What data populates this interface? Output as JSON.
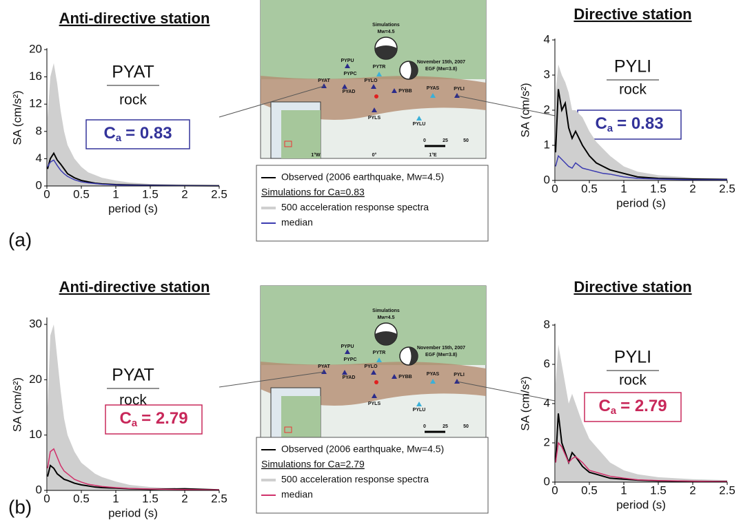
{
  "chart_data": [
    {
      "type": "line",
      "title": "Anti-directive station",
      "station": "PYAT",
      "site": "rock",
      "coef_symbol": "C",
      "coef_subscript": "a",
      "coef_text": "= 0.83",
      "coef_color": "#33339a",
      "xlabel": "period (s)",
      "ylabel": "SA (cm/s²)",
      "xlim": [
        0,
        2.5
      ],
      "xticks": [
        0,
        0.5,
        1,
        1.5,
        2,
        2.5
      ],
      "ylim": [
        0,
        20
      ],
      "yticks": [
        0,
        4,
        8,
        12,
        16,
        20
      ],
      "x": [
        0.01,
        0.05,
        0.1,
        0.15,
        0.2,
        0.25,
        0.3,
        0.4,
        0.5,
        0.6,
        0.7,
        0.8,
        1,
        1.2,
        1.5,
        2,
        2.5
      ],
      "legend_title": "Simulations for Ca=0.83",
      "series": [
        {
          "name": "500 acceleration response spectra",
          "color": "#cfcfcf",
          "style": "area",
          "values": [
            10,
            16,
            18,
            15,
            11,
            8,
            6,
            4,
            2.8,
            2,
            1.6,
            1.2,
            0.8,
            0.5,
            0.3,
            0.2,
            0.15
          ]
        },
        {
          "name": "Observed (2006 earthquake, Mw=4.5)",
          "color": "#000000",
          "style": "line",
          "values": [
            2.5,
            4,
            4.8,
            3.8,
            3.2,
            2.5,
            1.8,
            1.2,
            0.8,
            0.6,
            0.4,
            0.3,
            0.2,
            0.15,
            0.1,
            0.05,
            0.03
          ]
        },
        {
          "name": "median",
          "color": "#3b3bb0",
          "style": "line",
          "values": [
            2.8,
            3.5,
            3.8,
            3,
            2.3,
            1.8,
            1.4,
            0.9,
            0.6,
            0.45,
            0.35,
            0.25,
            0.15,
            0.1,
            0.07,
            0.04,
            0.03
          ]
        }
      ]
    },
    {
      "type": "line",
      "title": "Directive station",
      "station": "PYLI",
      "site": "rock",
      "coef_symbol": "C",
      "coef_subscript": "a",
      "coef_text": "= 0.83",
      "coef_color": "#33339a",
      "xlabel": "period (s)",
      "ylabel": "SA (cm/s²)",
      "xlim": [
        0,
        2.5
      ],
      "xticks": [
        0,
        0.5,
        1,
        1.5,
        2,
        2.5
      ],
      "ylim": [
        0,
        4
      ],
      "yticks": [
        0,
        1,
        2,
        3,
        4
      ],
      "x": [
        0.01,
        0.05,
        0.1,
        0.15,
        0.2,
        0.25,
        0.3,
        0.4,
        0.5,
        0.6,
        0.7,
        0.8,
        1,
        1.2,
        1.5,
        2,
        2.5
      ],
      "series": [
        {
          "name": "500 acceleration response spectra",
          "color": "#cfcfcf",
          "style": "area",
          "values": [
            2.5,
            3.3,
            3,
            2.8,
            2.5,
            2,
            2,
            1.8,
            1.4,
            1.1,
            0.9,
            0.7,
            0.4,
            0.25,
            0.15,
            0.08,
            0.05
          ]
        },
        {
          "name": "Observed (2006 earthquake, Mw=4.5)",
          "color": "#000000",
          "style": "line",
          "values": [
            0.8,
            2.6,
            2,
            2.2,
            1.5,
            1.2,
            1.4,
            1,
            0.7,
            0.5,
            0.4,
            0.3,
            0.2,
            0.1,
            0.06,
            0.04,
            0.03
          ]
        },
        {
          "name": "median",
          "color": "#3b3bb0",
          "style": "line",
          "values": [
            0.4,
            0.7,
            0.6,
            0.5,
            0.4,
            0.35,
            0.5,
            0.35,
            0.3,
            0.25,
            0.2,
            0.18,
            0.1,
            0.06,
            0.04,
            0.02,
            0.02
          ]
        }
      ]
    },
    {
      "type": "line",
      "title": "Anti-directive station",
      "station": "PYAT",
      "site": "rock",
      "coef_symbol": "C",
      "coef_subscript": "a",
      "coef_text": "= 2.79",
      "coef_color": "#c8285a",
      "xlabel": "period (s)",
      "ylabel": "SA (cm/s²)",
      "xlim": [
        0,
        2.5
      ],
      "xticks": [
        0,
        0.5,
        1,
        1.5,
        2,
        2.5
      ],
      "ylim": [
        0,
        31
      ],
      "yticks": [
        0,
        10,
        20,
        30
      ],
      "x": [
        0.01,
        0.05,
        0.1,
        0.15,
        0.2,
        0.25,
        0.3,
        0.4,
        0.5,
        0.6,
        0.7,
        0.8,
        1,
        1.2,
        1.5,
        2,
        2.5
      ],
      "legend_title": "Simulations for Ca=2.79",
      "series": [
        {
          "name": "500 acceleration response spectra",
          "color": "#cfcfcf",
          "style": "area",
          "values": [
            15,
            28,
            30,
            24,
            18,
            13,
            10,
            7,
            5,
            4,
            3,
            2.4,
            1.6,
            1,
            0.6,
            0.3,
            0.2
          ]
        },
        {
          "name": "Observed (2006 earthquake, Mw=4.5)",
          "color": "#000000",
          "style": "line",
          "values": [
            2.5,
            4.5,
            4,
            3,
            2.5,
            2,
            1.8,
            1.3,
            1,
            0.8,
            0.6,
            0.5,
            0.4,
            0.3,
            0.2,
            0.3,
            0.1
          ]
        },
        {
          "name": "median",
          "color": "#d0306a",
          "style": "line",
          "values": [
            4,
            7,
            7.5,
            6,
            4.5,
            3.5,
            3,
            2,
            1.5,
            1.1,
            0.9,
            0.7,
            0.5,
            0.35,
            0.25,
            0.15,
            0.1
          ]
        }
      ]
    },
    {
      "type": "line",
      "title": "Directive station",
      "station": "PYLI",
      "site": "rock",
      "coef_symbol": "C",
      "coef_subscript": "a",
      "coef_text": "= 2.79",
      "coef_color": "#c8285a",
      "xlabel": "period (s)",
      "ylabel": "SA (cm/s²)",
      "xlim": [
        0,
        2.5
      ],
      "xticks": [
        0,
        0.5,
        1,
        1.5,
        2,
        2.5
      ],
      "ylim": [
        0,
        8
      ],
      "yticks": [
        0,
        2,
        4,
        6,
        8
      ],
      "x": [
        0.01,
        0.05,
        0.1,
        0.15,
        0.2,
        0.25,
        0.3,
        0.4,
        0.5,
        0.6,
        0.7,
        0.8,
        1,
        1.2,
        1.5,
        2,
        2.5
      ],
      "series": [
        {
          "name": "500 acceleration response spectra",
          "color": "#cfcfcf",
          "style": "area",
          "values": [
            5,
            7,
            6,
            5,
            4,
            4.5,
            4,
            3,
            2.2,
            1.8,
            1.4,
            1,
            0.6,
            0.4,
            0.25,
            0.15,
            0.1
          ]
        },
        {
          "name": "Observed (2006 earthquake, Mw=4.5)",
          "color": "#000000",
          "style": "line",
          "values": [
            1,
            3.5,
            2,
            1.5,
            1,
            1.5,
            1.3,
            0.8,
            0.5,
            0.4,
            0.3,
            0.2,
            0.15,
            0.1,
            0.06,
            0.04,
            0.03
          ]
        },
        {
          "name": "median",
          "color": "#d0306a",
          "style": "line",
          "values": [
            1,
            2,
            1.8,
            1.4,
            1,
            1.2,
            1.3,
            1,
            0.6,
            0.5,
            0.4,
            0.3,
            0.2,
            0.12,
            0.08,
            0.05,
            0.03
          ]
        }
      ]
    }
  ],
  "panel_labels": [
    "(a)",
    "(b)"
  ],
  "map": {
    "simulations": "Simulations",
    "sim_magnitude": "Mw=4.5",
    "egf_date": "November 15th, 2007",
    "egf": "EGF (Mw=3.8)",
    "stations": [
      "PYPU",
      "PYPC",
      "PYTR",
      "PYAT",
      "PYAD",
      "PYLO",
      "PYBB",
      "PYAS",
      "PYLI",
      "PYLS",
      "PYLU"
    ],
    "scale": [
      "0",
      "25",
      "50"
    ],
    "longitudes": [
      "1°W",
      "0°",
      "1°E"
    ]
  }
}
